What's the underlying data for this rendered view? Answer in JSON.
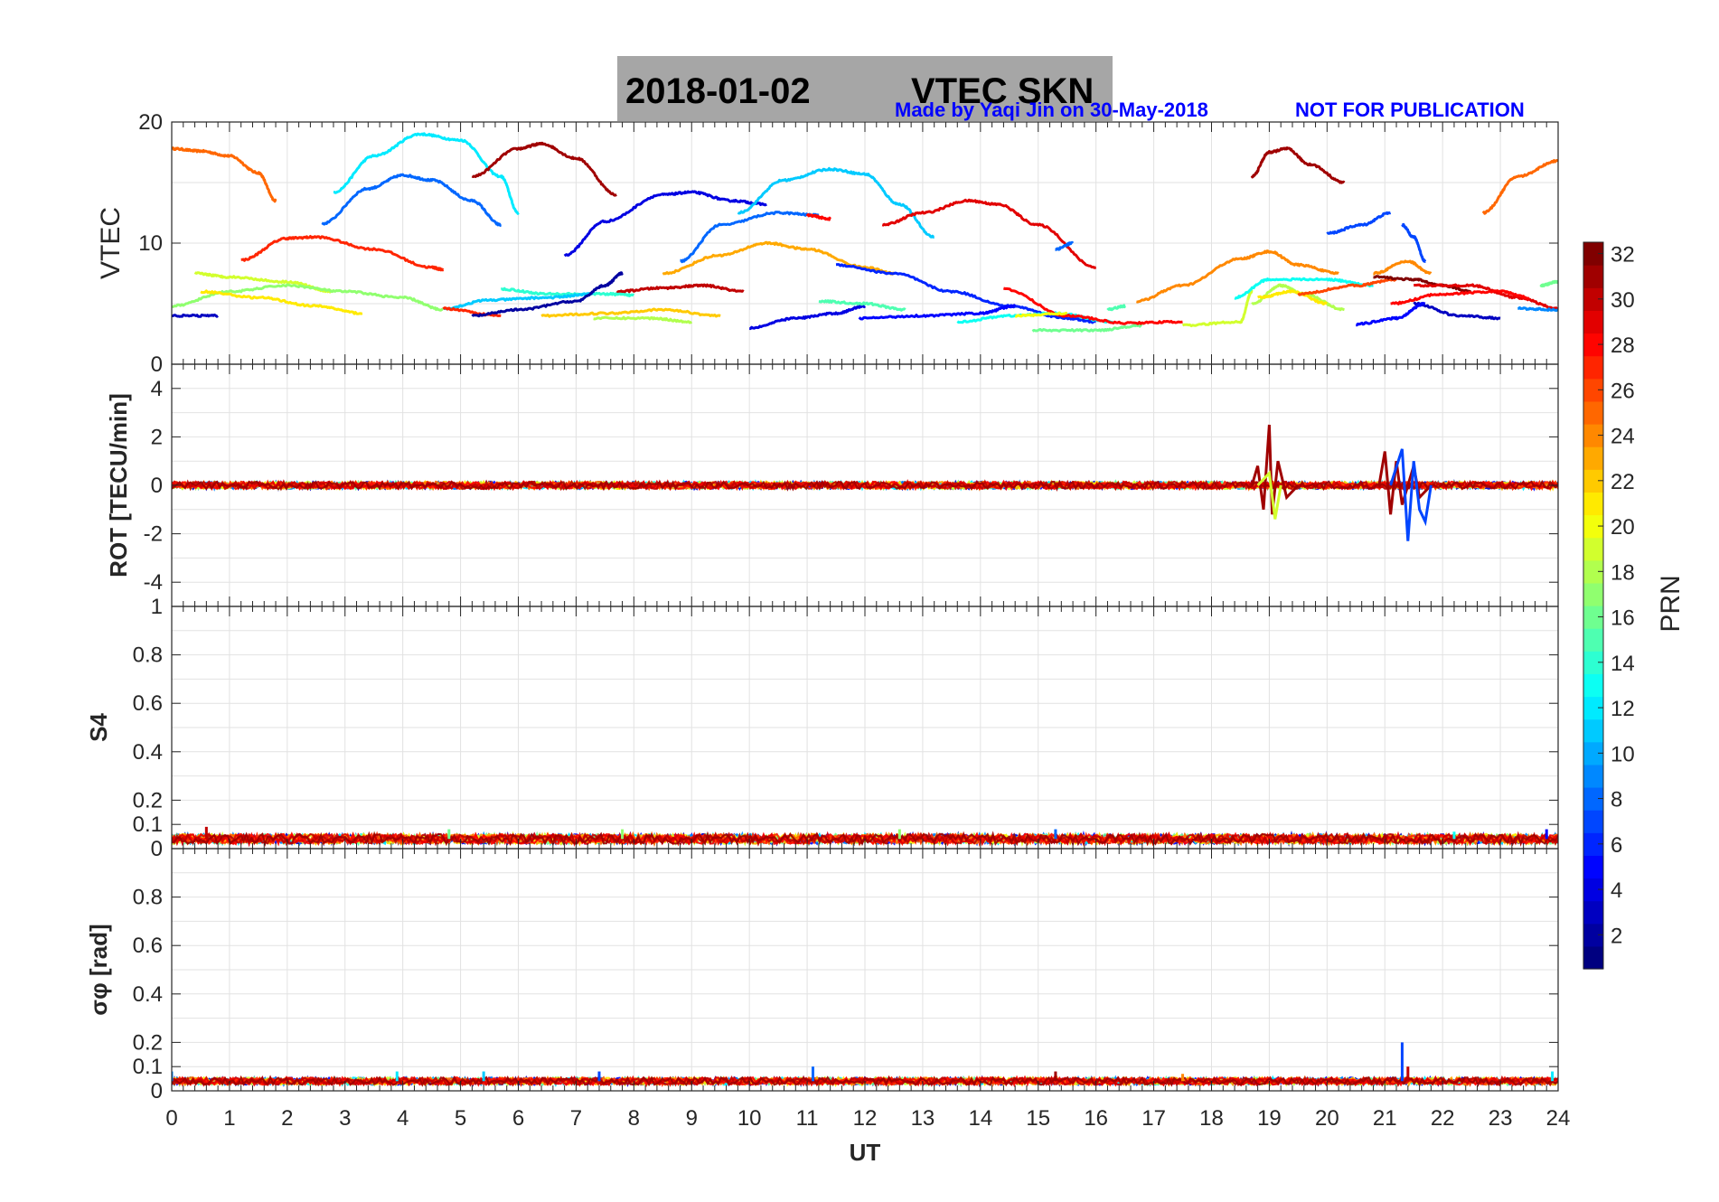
{
  "title": {
    "date": "2018-01-02",
    "label": "VTEC  SKN"
  },
  "credit": {
    "made_by": "Made by Yaqi Jin on 30-May-2018",
    "notice": "NOT FOR PUBLICATION"
  },
  "colorbar": {
    "label": "PRN",
    "ticks": [
      "2",
      "4",
      "6",
      "8",
      "10",
      "12",
      "14",
      "16",
      "18",
      "20",
      "22",
      "24",
      "26",
      "28",
      "30",
      "32"
    ],
    "min": 1,
    "max": 32
  },
  "x_axis": {
    "label": "UT",
    "ticks": [
      "0",
      "1",
      "2",
      "3",
      "4",
      "5",
      "6",
      "7",
      "8",
      "9",
      "10",
      "11",
      "12",
      "13",
      "14",
      "15",
      "16",
      "17",
      "18",
      "19",
      "20",
      "21",
      "22",
      "23",
      "24"
    ],
    "range": [
      0,
      24
    ]
  },
  "panels": [
    {
      "ylabel": "VTEC",
      "ticks": [
        "0",
        "10",
        "20"
      ]
    },
    {
      "ylabel": "ROT [TECU/min]",
      "ticks": [
        "-4",
        "-2",
        "0",
        "2",
        "4"
      ]
    },
    {
      "ylabel": "S4",
      "ticks": [
        "0",
        "0.1",
        "0.2",
        "0.4",
        "0.6",
        "0.8",
        "1"
      ]
    },
    {
      "ylabel": "σφ [rad]",
      "ticks": [
        "0",
        "0.1",
        "0.2",
        "0.4",
        "0.6",
        "0.8"
      ]
    }
  ],
  "chart_data": [
    {
      "type": "line",
      "title": "2018-01-02    VTEC  SKN",
      "xlabel": "",
      "ylabel": "VTEC",
      "xlim": [
        0,
        24
      ],
      "ylim": [
        0,
        20
      ],
      "series": [
        {
          "name": "PRN 25",
          "prn": 25,
          "x": [
            0,
            0.5,
            1,
            1.5,
            1.8
          ],
          "y": [
            17.8,
            17.6,
            17.2,
            15.8,
            13.5
          ]
        },
        {
          "name": "PRN 12",
          "prn": 12,
          "x": [
            2.8,
            3.5,
            4.3,
            5,
            5.7,
            6
          ],
          "y": [
            14.2,
            17.2,
            19,
            18.5,
            15.5,
            12.5
          ]
        },
        {
          "name": "PRN 8",
          "prn": 8,
          "x": [
            2.6,
            3.4,
            4,
            4.5,
            5.2,
            5.7
          ],
          "y": [
            11.6,
            14.5,
            15.6,
            15.2,
            13.5,
            11.5
          ]
        },
        {
          "name": "PRN 31",
          "prn": 31,
          "x": [
            5.2,
            6,
            6.4,
            7,
            7.7
          ],
          "y": [
            15.5,
            17.8,
            18.2,
            17,
            14
          ]
        },
        {
          "name": "PRN 27",
          "prn": 27,
          "x": [
            1.2,
            2,
            2.5,
            3.5,
            4.5,
            4.7
          ],
          "y": [
            8.6,
            10.4,
            10.5,
            9.5,
            8,
            7.8
          ]
        },
        {
          "name": "PRN 4",
          "prn": 4,
          "x": [
            6.8,
            7.5,
            8.5,
            9,
            9.7,
            10.3
          ],
          "y": [
            9,
            11.8,
            14,
            14.2,
            13.5,
            13.2
          ]
        },
        {
          "name": "PRN 8b",
          "prn": 8,
          "x": [
            8.8,
            9.5,
            10.5,
            11.2
          ],
          "y": [
            8.5,
            11.5,
            12.5,
            12.3
          ]
        },
        {
          "name": "PRN 11",
          "prn": 11,
          "x": [
            9.8,
            10.6,
            11.4,
            12,
            12.6,
            13.2
          ],
          "y": [
            12.5,
            15.2,
            16.1,
            15.7,
            13.2,
            10.5
          ]
        },
        {
          "name": "PRN 28",
          "prn": 28,
          "x": [
            11,
            11.4
          ],
          "y": [
            12.3,
            12
          ]
        },
        {
          "name": "PRN 29",
          "prn": 29,
          "x": [
            12.3,
            13,
            13.8,
            14.3,
            15,
            16
          ],
          "y": [
            11.5,
            12.5,
            13.5,
            13.2,
            11.5,
            8
          ]
        },
        {
          "name": "PRN 8c",
          "prn": 8,
          "x": [
            15.3,
            15.6
          ],
          "y": [
            9.5,
            10
          ]
        },
        {
          "name": "PRN 31b",
          "prn": 31,
          "x": [
            18.7,
            19,
            19.3,
            19.7,
            20.3
          ],
          "y": [
            15.5,
            17.5,
            17.8,
            16.5,
            15
          ]
        },
        {
          "name": "PRN 7",
          "prn": 7,
          "x": [
            20,
            20.6,
            21.1
          ],
          "y": [
            10.8,
            11.5,
            12.5
          ]
        },
        {
          "name": "PRN 7b",
          "prn": 7,
          "x": [
            21.3,
            21.5,
            21.7
          ],
          "y": [
            11.5,
            10.5,
            8.5
          ]
        },
        {
          "name": "PRN 25b",
          "prn": 25,
          "x": [
            22.7,
            23.3,
            24
          ],
          "y": [
            12.5,
            15.5,
            16.8
          ]
        },
        {
          "name": "PRN 24",
          "prn": 24,
          "x": [
            16.7,
            17.5,
            18.5,
            19,
            19.5,
            20.2
          ],
          "y": [
            5.2,
            6.5,
            8.7,
            9.3,
            8.2,
            7.5
          ]
        },
        {
          "name": "PRN 23",
          "prn": 23,
          "x": [
            8.5,
            9.5,
            10.3,
            11,
            12,
            12.5
          ],
          "y": [
            7.5,
            9,
            10,
            9.5,
            8,
            7.5
          ]
        },
        {
          "name": "PRN 6",
          "prn": 6,
          "x": [
            11.5,
            12.5,
            13.5,
            14.5,
            15.5,
            16
          ],
          "y": [
            8.2,
            7.5,
            6,
            4.8,
            3.8,
            3.5
          ]
        },
        {
          "name": "PRN 30",
          "prn": 30,
          "x": [
            7.7,
            8.5,
            9.2,
            9.9
          ],
          "y": [
            6,
            6.3,
            6.5,
            6
          ]
        },
        {
          "name": "PRN 19",
          "prn": 19,
          "x": [
            0.4,
            1,
            2,
            2.8
          ],
          "y": [
            7.5,
            7.2,
            6.8,
            6
          ]
        },
        {
          "name": "PRN 17",
          "prn": 17,
          "x": [
            0,
            1,
            2,
            3,
            4,
            4.7
          ],
          "y": [
            4.8,
            6,
            6.5,
            6,
            5.5,
            4.5
          ]
        },
        {
          "name": "PRN 14",
          "prn": 14,
          "x": [
            5.7,
            6.5,
            7.5,
            8
          ],
          "y": [
            6.2,
            5.8,
            5.8,
            5.7
          ]
        },
        {
          "name": "PRN 11b",
          "prn": 11,
          "x": [
            4.7,
            5.5,
            6.5,
            7.3
          ],
          "y": [
            4.6,
            5.3,
            5.5,
            5.8
          ]
        },
        {
          "name": "PRN 21",
          "prn": 21,
          "x": [
            0.5,
            1.5,
            2.5,
            3.3
          ],
          "y": [
            6,
            5.5,
            4.8,
            4.2
          ]
        },
        {
          "name": "PRN 3",
          "prn": 3,
          "x": [
            0,
            0.8
          ],
          "y": [
            4,
            4
          ]
        },
        {
          "name": "PRN 27b",
          "prn": 27,
          "x": [
            4.7,
            5.7
          ],
          "y": [
            4.6,
            4
          ]
        },
        {
          "name": "PRN 2",
          "prn": 2,
          "x": [
            5.2,
            6,
            7,
            7.5,
            7.8
          ],
          "y": [
            4,
            4.5,
            5.2,
            6.5,
            7.5
          ]
        },
        {
          "name": "PRN 22",
          "prn": 22,
          "x": [
            6.4,
            7.5,
            8.5,
            9.5
          ],
          "y": [
            4,
            4.2,
            4.5,
            4
          ]
        },
        {
          "name": "PRN 18",
          "prn": 18,
          "x": [
            7.3,
            8.3,
            9
          ],
          "y": [
            3.8,
            3.8,
            3.5
          ]
        },
        {
          "name": "PRN 4b",
          "prn": 4,
          "x": [
            10,
            10.8,
            11.5,
            12
          ],
          "y": [
            3,
            3.8,
            4.2,
            4.8
          ]
        },
        {
          "name": "PRN 15",
          "prn": 15,
          "x": [
            11.2,
            12,
            12.7
          ],
          "y": [
            5.2,
            5,
            4.5
          ]
        },
        {
          "name": "PRN 5",
          "prn": 5,
          "x": [
            11.9,
            13,
            14,
            14.6
          ],
          "y": [
            3.8,
            4,
            4.2,
            4.8
          ]
        },
        {
          "name": "PRN 13",
          "prn": 13,
          "x": [
            13.6,
            14.5,
            15.3,
            16.3
          ],
          "y": [
            3.5,
            4,
            4.2,
            3.5
          ]
        },
        {
          "name": "PRN 16",
          "prn": 16,
          "x": [
            14.9,
            16,
            16.8
          ],
          "y": [
            2.8,
            2.8,
            3.2
          ]
        },
        {
          "name": "PRN 28b",
          "prn": 28,
          "x": [
            14.4,
            15.5,
            16.5,
            17.5
          ],
          "y": [
            6.2,
            4,
            3.4,
            3.5
          ]
        },
        {
          "name": "PRN 20",
          "prn": 20,
          "x": [
            14.6,
            15.5
          ],
          "y": [
            4,
            4.2
          ]
        },
        {
          "name": "PRN 15b",
          "prn": 15,
          "x": [
            16.2,
            16.5
          ],
          "y": [
            4.5,
            4.8
          ]
        },
        {
          "name": "PRN 19b",
          "prn": 19,
          "x": [
            17.5,
            18.5,
            18.7
          ],
          "y": [
            3.2,
            3.5,
            6
          ]
        },
        {
          "name": "PRN 18b",
          "prn": 18,
          "x": [
            18.7,
            19.2,
            19.6,
            20.3
          ],
          "y": [
            5,
            6.5,
            5.8,
            4.5
          ]
        },
        {
          "name": "PRN 21b",
          "prn": 21,
          "x": [
            18.8,
            19.4,
            20
          ],
          "y": [
            5.5,
            6,
            5
          ]
        },
        {
          "name": "PRN 13b",
          "prn": 13,
          "x": [
            18.4,
            19,
            20,
            20.8
          ],
          "y": [
            5.5,
            7,
            7,
            6.5
          ]
        },
        {
          "name": "PRN 26",
          "prn": 26,
          "x": [
            19.5,
            20.5,
            21.2
          ],
          "y": [
            5.8,
            6.5,
            7
          ]
        },
        {
          "name": "PRN 24b",
          "prn": 24,
          "x": [
            20.8,
            21.4,
            21.8
          ],
          "y": [
            7.5,
            8.5,
            7.5
          ]
        },
        {
          "name": "PRN 32",
          "prn": 32,
          "x": [
            20.8,
            21.5,
            22,
            22.5
          ],
          "y": [
            7.2,
            7,
            6.5,
            6
          ]
        },
        {
          "name": "PRN 29b",
          "prn": 29,
          "x": [
            21.5,
            22.5,
            23.3,
            24
          ],
          "y": [
            6.5,
            6.5,
            5.5,
            4.6
          ]
        },
        {
          "name": "PRN 28c",
          "prn": 28,
          "x": [
            21.1,
            22,
            23,
            23.5
          ],
          "y": [
            5,
            5.8,
            6,
            5.5
          ]
        },
        {
          "name": "PRN 3b",
          "prn": 3,
          "x": [
            21.5,
            22.3,
            23
          ],
          "y": [
            5,
            4,
            3.8
          ]
        },
        {
          "name": "PRN 5b",
          "prn": 5,
          "x": [
            20.5,
            21.2,
            21.7
          ],
          "y": [
            3.3,
            3.8,
            5
          ]
        },
        {
          "name": "PRN 9",
          "prn": 9,
          "x": [
            23.3,
            24
          ],
          "y": [
            4.6,
            4.5
          ]
        },
        {
          "name": "PRN 16b",
          "prn": 16,
          "x": [
            23.7,
            24
          ],
          "y": [
            6.5,
            6.8
          ]
        }
      ]
    },
    {
      "type": "line",
      "ylabel": "ROT [TECU/min]",
      "xlim": [
        0,
        24
      ],
      "ylim": [
        -5,
        5
      ],
      "baseline": 0,
      "noise_amplitude": 0.15,
      "disturbances": [
        {
          "prn": 31,
          "x": [
            18.7,
            18.8,
            18.9,
            19,
            19.05,
            19.15,
            19.3,
            19.5
          ],
          "y": [
            0,
            0.8,
            -1,
            2.5,
            -1.2,
            1,
            -0.5,
            0
          ]
        },
        {
          "prn": 19,
          "x": [
            18.8,
            19,
            19.1,
            19.2
          ],
          "y": [
            0,
            0.5,
            -1.4,
            0
          ]
        },
        {
          "prn": 31,
          "x": [
            20.9,
            21,
            21.1,
            21.2,
            21.3,
            21.5,
            21.6,
            21.8
          ],
          "y": [
            0,
            1.4,
            -1.2,
            1,
            -0.8,
            0.8,
            -0.5,
            0
          ]
        },
        {
          "prn": 7,
          "x": [
            21.1,
            21.3,
            21.4,
            21.5,
            21.6,
            21.7,
            21.8
          ],
          "y": [
            0,
            1.5,
            -2.3,
            1,
            -1,
            -1.5,
            0
          ]
        }
      ]
    },
    {
      "type": "line",
      "ylabel": "S4",
      "xlim": [
        0,
        24
      ],
      "ylim": [
        0,
        1
      ],
      "baseline": 0.04,
      "noise_amplitude": 0.02,
      "spikes": [
        {
          "prn": 30,
          "x": 0.6,
          "y": 0.09
        },
        {
          "prn": 16,
          "x": 4.8,
          "y": 0.08
        },
        {
          "prn": 17,
          "x": 7.8,
          "y": 0.08
        },
        {
          "prn": 17,
          "x": 12.6,
          "y": 0.08
        },
        {
          "prn": 8,
          "x": 15.3,
          "y": 0.08
        },
        {
          "prn": 13,
          "x": 22.2,
          "y": 0.07
        },
        {
          "prn": 5,
          "x": 23.8,
          "y": 0.08
        }
      ]
    },
    {
      "type": "line",
      "ylabel": "σφ [rad]",
      "xlim": [
        0,
        24
      ],
      "ylim": [
        0,
        1
      ],
      "baseline": 0.04,
      "noise_amplitude": 0.015,
      "spikes": [
        {
          "prn": 9,
          "x": 0,
          "y": 0.08
        },
        {
          "prn": 12,
          "x": 3.9,
          "y": 0.08
        },
        {
          "prn": 11,
          "x": 5.4,
          "y": 0.08
        },
        {
          "prn": 7,
          "x": 7.4,
          "y": 0.08
        },
        {
          "prn": 8,
          "x": 11.1,
          "y": 0.1
        },
        {
          "prn": 31,
          "x": 15.3,
          "y": 0.08
        },
        {
          "prn": 24,
          "x": 17.5,
          "y": 0.07
        },
        {
          "prn": 7,
          "x": 21.3,
          "y": 0.2
        },
        {
          "prn": 30,
          "x": 21.4,
          "y": 0.1
        },
        {
          "prn": 12,
          "x": 23.9,
          "y": 0.08
        }
      ]
    }
  ]
}
